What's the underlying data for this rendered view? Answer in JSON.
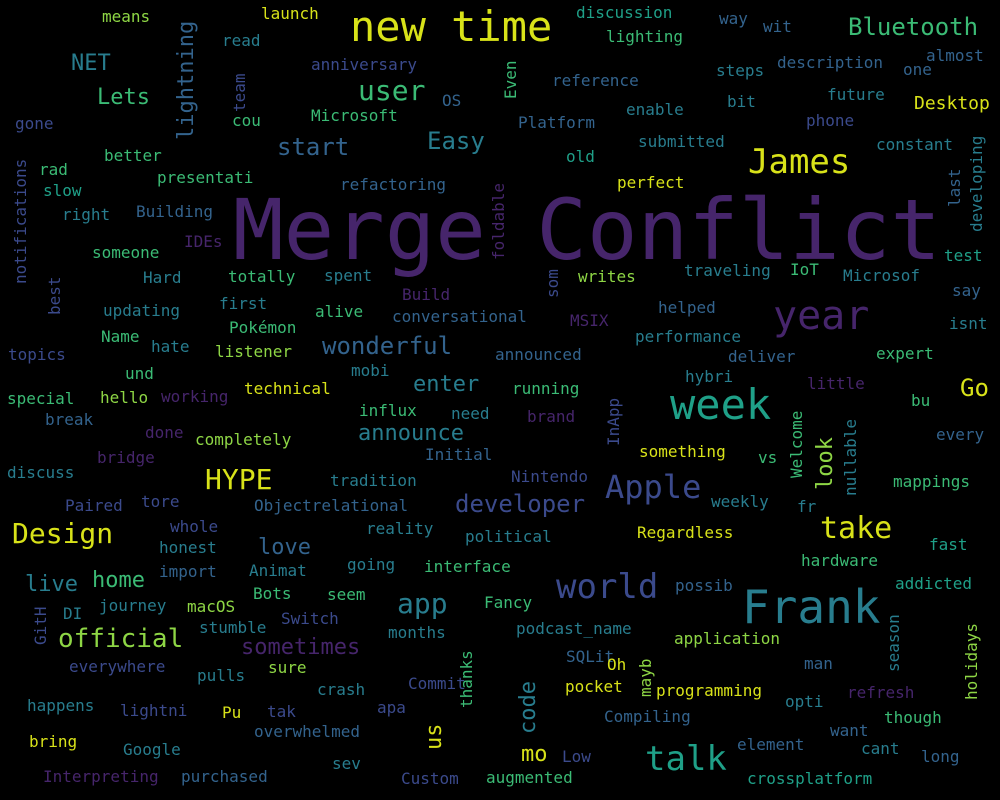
{
  "palette": {
    "background": "#000000",
    "purple": "#46256b",
    "indigo": "#3b4a8c",
    "blue": "#33638d",
    "teal": "#287d8e",
    "green_teal": "#1fa088",
    "green": "#3bbb75",
    "lime": "#8ed645",
    "yellow": "#d8e219"
  },
  "words": [
    {
      "text": "Merge Conflict",
      "size": 84,
      "color": "#46256b"
    },
    {
      "text": "new time",
      "size": 42,
      "color": "#d8e219"
    },
    {
      "text": "Frank",
      "size": 46,
      "color": "#287d8e"
    },
    {
      "text": "week",
      "size": 42,
      "color": "#1fa088"
    },
    {
      "text": "James",
      "size": 34,
      "color": "#d8e219"
    },
    {
      "text": "year",
      "size": 40,
      "color": "#46256b"
    },
    {
      "text": "talk",
      "size": 34,
      "color": "#1fa088"
    },
    {
      "text": "world",
      "size": 34,
      "color": "#3b4a8c"
    },
    {
      "text": "Apple",
      "size": 32,
      "color": "#3b4a8c"
    },
    {
      "text": "take",
      "size": 30,
      "color": "#d8e219"
    },
    {
      "text": "Design",
      "size": 28,
      "color": "#d8e219"
    },
    {
      "text": "HYPE",
      "size": 28,
      "color": "#d8e219"
    },
    {
      "text": "Bluetooth",
      "size": 24,
      "color": "#3bbb75"
    },
    {
      "text": "user",
      "size": 28,
      "color": "#3bbb75"
    },
    {
      "text": "app",
      "size": 28,
      "color": "#287d8e"
    },
    {
      "text": "official",
      "size": 26,
      "color": "#8ed645"
    },
    {
      "text": "developer",
      "size": 24,
      "color": "#3b4a8c"
    },
    {
      "text": "wonderful",
      "size": 24,
      "color": "#33638d"
    },
    {
      "text": "announce",
      "size": 22,
      "color": "#287d8e"
    },
    {
      "text": "start",
      "size": 24,
      "color": "#33638d"
    },
    {
      "text": "Easy",
      "size": 24,
      "color": "#287d8e"
    },
    {
      "text": "Lets",
      "size": 22,
      "color": "#3bbb75"
    },
    {
      "text": "NET",
      "size": 22,
      "color": "#287d8e"
    },
    {
      "text": "sometimes",
      "size": 22,
      "color": "#46256b"
    },
    {
      "text": "live",
      "size": 22,
      "color": "#287d8e"
    },
    {
      "text": "home",
      "size": 22,
      "color": "#3bbb75"
    },
    {
      "text": "love",
      "size": 22,
      "color": "#33638d"
    },
    {
      "text": "enter",
      "size": 22,
      "color": "#287d8e"
    },
    {
      "text": "Go",
      "size": 24,
      "color": "#d8e219"
    },
    {
      "text": "us",
      "size": 22,
      "color": "#d8e219"
    },
    {
      "text": "code",
      "size": 22,
      "color": "#287d8e"
    },
    {
      "text": "look",
      "size": 22,
      "color": "#8ed645"
    },
    {
      "text": "mo",
      "size": 22,
      "color": "#d8e219"
    },
    {
      "text": "lightning",
      "size": 22,
      "color": "#33638d"
    },
    {
      "text": "Desktop",
      "size": 18,
      "color": "#d8e219"
    },
    {
      "text": "means",
      "size": 16,
      "color": "#8ed645"
    },
    {
      "text": "launch",
      "size": 16,
      "color": "#d8e219"
    },
    {
      "text": "discussion",
      "size": 16,
      "color": "#1fa088"
    },
    {
      "text": "lighting",
      "size": 16,
      "color": "#3bbb75"
    },
    {
      "text": "read",
      "size": 16,
      "color": "#287d8e"
    },
    {
      "text": "way",
      "size": 16,
      "color": "#33638d"
    },
    {
      "text": "wit",
      "size": 16,
      "color": "#33638d"
    },
    {
      "text": "almost",
      "size": 16,
      "color": "#33638d"
    },
    {
      "text": "anniversary",
      "size": 16,
      "color": "#3b4a8c"
    },
    {
      "text": "reference",
      "size": 16,
      "color": "#33638d"
    },
    {
      "text": "steps",
      "size": 16,
      "color": "#287d8e"
    },
    {
      "text": "description",
      "size": 16,
      "color": "#33638d"
    },
    {
      "text": "one",
      "size": 16,
      "color": "#33638d"
    },
    {
      "text": "OS",
      "size": 16,
      "color": "#33638d"
    },
    {
      "text": "Even",
      "size": 16,
      "color": "#3bbb75"
    },
    {
      "text": "enable",
      "size": 16,
      "color": "#287d8e"
    },
    {
      "text": "bit",
      "size": 16,
      "color": "#287d8e"
    },
    {
      "text": "future",
      "size": 16,
      "color": "#287d8e"
    },
    {
      "text": "team",
      "size": 16,
      "color": "#3b4a8c"
    },
    {
      "text": "cou",
      "size": 16,
      "color": "#3bbb75"
    },
    {
      "text": "Microsoft",
      "size": 16,
      "color": "#3bbb75"
    },
    {
      "text": "Platform",
      "size": 16,
      "color": "#33638d"
    },
    {
      "text": "phone",
      "size": 16,
      "color": "#3b4a8c"
    },
    {
      "text": "gone",
      "size": 16,
      "color": "#3b4a8c"
    },
    {
      "text": "better",
      "size": 16,
      "color": "#3bbb75"
    },
    {
      "text": "old",
      "size": 16,
      "color": "#1fa088"
    },
    {
      "text": "submitted",
      "size": 16,
      "color": "#287d8e"
    },
    {
      "text": "constant",
      "size": 16,
      "color": "#287d8e"
    },
    {
      "text": "developing",
      "size": 16,
      "color": "#287d8e"
    },
    {
      "text": "rad",
      "size": 16,
      "color": "#3bbb75"
    },
    {
      "text": "presentati",
      "size": 16,
      "color": "#3bbb75"
    },
    {
      "text": "refactoring",
      "size": 16,
      "color": "#33638d"
    },
    {
      "text": "perfect",
      "size": 16,
      "color": "#d8e219"
    },
    {
      "text": "last",
      "size": 16,
      "color": "#33638d"
    },
    {
      "text": "slow",
      "size": 16,
      "color": "#1fa088"
    },
    {
      "text": "notifications",
      "size": 16,
      "color": "#3b4a8c"
    },
    {
      "text": "right",
      "size": 16,
      "color": "#287d8e"
    },
    {
      "text": "Building",
      "size": 16,
      "color": "#33638d"
    },
    {
      "text": "foldable",
      "size": 16,
      "color": "#46256b"
    },
    {
      "text": "someone",
      "size": 16,
      "color": "#3bbb75"
    },
    {
      "text": "IDEs",
      "size": 16,
      "color": "#46256b"
    },
    {
      "text": "test",
      "size": 16,
      "color": "#1fa088"
    },
    {
      "text": "best",
      "size": 16,
      "color": "#3b4a8c"
    },
    {
      "text": "Hard",
      "size": 16,
      "color": "#287d8e"
    },
    {
      "text": "totally",
      "size": 16,
      "color": "#3bbb75"
    },
    {
      "text": "spent",
      "size": 16,
      "color": "#287d8e"
    },
    {
      "text": "som",
      "size": 16,
      "color": "#3b4a8c"
    },
    {
      "text": "writes",
      "size": 16,
      "color": "#8ed645"
    },
    {
      "text": "traveling",
      "size": 16,
      "color": "#287d8e"
    },
    {
      "text": "IoT",
      "size": 16,
      "color": "#3bbb75"
    },
    {
      "text": "Microsof",
      "size": 16,
      "color": "#287d8e"
    },
    {
      "text": "say",
      "size": 16,
      "color": "#33638d"
    },
    {
      "text": "updating",
      "size": 16,
      "color": "#287d8e"
    },
    {
      "text": "first",
      "size": 16,
      "color": "#287d8e"
    },
    {
      "text": "Build",
      "size": 16,
      "color": "#46256b"
    },
    {
      "text": "alive",
      "size": 16,
      "color": "#3bbb75"
    },
    {
      "text": "conversational",
      "size": 16,
      "color": "#33638d"
    },
    {
      "text": "helped",
      "size": 16,
      "color": "#33638d"
    },
    {
      "text": "isnt",
      "size": 16,
      "color": "#287d8e"
    },
    {
      "text": "Name",
      "size": 16,
      "color": "#3bbb75"
    },
    {
      "text": "Pokémon",
      "size": 16,
      "color": "#3bbb75"
    },
    {
      "text": "MSIX",
      "size": 16,
      "color": "#46256b"
    },
    {
      "text": "performance",
      "size": 16,
      "color": "#287d8e"
    },
    {
      "text": "topics",
      "size": 16,
      "color": "#3b4a8c"
    },
    {
      "text": "hate",
      "size": 16,
      "color": "#287d8e"
    },
    {
      "text": "listener",
      "size": 16,
      "color": "#8ed645"
    },
    {
      "text": "announced",
      "size": 16,
      "color": "#33638d"
    },
    {
      "text": "deliver",
      "size": 16,
      "color": "#33638d"
    },
    {
      "text": "expert",
      "size": 16,
      "color": "#3bbb75"
    },
    {
      "text": "und",
      "size": 16,
      "color": "#3bbb75"
    },
    {
      "text": "mobi",
      "size": 16,
      "color": "#287d8e"
    },
    {
      "text": "hybri",
      "size": 16,
      "color": "#287d8e"
    },
    {
      "text": "technical",
      "size": 16,
      "color": "#d8e219"
    },
    {
      "text": "running",
      "size": 16,
      "color": "#3bbb75"
    },
    {
      "text": "little",
      "size": 16,
      "color": "#46256b"
    },
    {
      "text": "special",
      "size": 16,
      "color": "#3bbb75"
    },
    {
      "text": "hello",
      "size": 16,
      "color": "#8ed645"
    },
    {
      "text": "working",
      "size": 16,
      "color": "#46256b"
    },
    {
      "text": "brand",
      "size": 16,
      "color": "#46256b"
    },
    {
      "text": "bu",
      "size": 16,
      "color": "#3bbb75"
    },
    {
      "text": "break",
      "size": 16,
      "color": "#33638d"
    },
    {
      "text": "influx",
      "size": 16,
      "color": "#3bbb75"
    },
    {
      "text": "need",
      "size": 16,
      "color": "#287d8e"
    },
    {
      "text": "InApp",
      "size": 16,
      "color": "#3b4a8c"
    },
    {
      "text": "Welcome",
      "size": 16,
      "color": "#3bbb75"
    },
    {
      "text": "nullable",
      "size": 16,
      "color": "#287d8e"
    },
    {
      "text": "every",
      "size": 16,
      "color": "#33638d"
    },
    {
      "text": "done",
      "size": 16,
      "color": "#46256b"
    },
    {
      "text": "completely",
      "size": 16,
      "color": "#8ed645"
    },
    {
      "text": "bridge",
      "size": 16,
      "color": "#46256b"
    },
    {
      "text": "something",
      "size": 16,
      "color": "#d8e219"
    },
    {
      "text": "vs",
      "size": 16,
      "color": "#3bbb75"
    },
    {
      "text": "discuss",
      "size": 16,
      "color": "#287d8e"
    },
    {
      "text": "tradition",
      "size": 16,
      "color": "#287d8e"
    },
    {
      "text": "Initial",
      "size": 16,
      "color": "#33638d"
    },
    {
      "text": "Nintendo",
      "size": 16,
      "color": "#3b4a8c"
    },
    {
      "text": "mappings",
      "size": 16,
      "color": "#3bbb75"
    },
    {
      "text": "Paired",
      "size": 16,
      "color": "#3b4a8c"
    },
    {
      "text": "tore",
      "size": 16,
      "color": "#3b4a8c"
    },
    {
      "text": "Objectrelational",
      "size": 16,
      "color": "#33638d"
    },
    {
      "text": "weekly",
      "size": 16,
      "color": "#287d8e"
    },
    {
      "text": "fr",
      "size": 16,
      "color": "#287d8e"
    },
    {
      "text": "whole",
      "size": 16,
      "color": "#3b4a8c"
    },
    {
      "text": "reality",
      "size": 16,
      "color": "#287d8e"
    },
    {
      "text": "political",
      "size": 16,
      "color": "#287d8e"
    },
    {
      "text": "Regardless",
      "size": 16,
      "color": "#d8e219"
    },
    {
      "text": "honest",
      "size": 16,
      "color": "#287d8e"
    },
    {
      "text": "fast",
      "size": 16,
      "color": "#1fa088"
    },
    {
      "text": "import",
      "size": 16,
      "color": "#33638d"
    },
    {
      "text": "Animat",
      "size": 16,
      "color": "#287d8e"
    },
    {
      "text": "going",
      "size": 16,
      "color": "#287d8e"
    },
    {
      "text": "interface",
      "size": 16,
      "color": "#3bbb75"
    },
    {
      "text": "hardware",
      "size": 16,
      "color": "#3bbb75"
    },
    {
      "text": "journey",
      "size": 16,
      "color": "#287d8e"
    },
    {
      "text": "Bots",
      "size": 16,
      "color": "#3bbb75"
    },
    {
      "text": "seem",
      "size": 16,
      "color": "#3bbb75"
    },
    {
      "text": "possib",
      "size": 16,
      "color": "#33638d"
    },
    {
      "text": "addicted",
      "size": 16,
      "color": "#1fa088"
    },
    {
      "text": "DI",
      "size": 16,
      "color": "#287d8e"
    },
    {
      "text": "macOS",
      "size": 16,
      "color": "#8ed645"
    },
    {
      "text": "Fancy",
      "size": 16,
      "color": "#3bbb75"
    },
    {
      "text": "GitH",
      "size": 16,
      "color": "#3b4a8c"
    },
    {
      "text": "stumble",
      "size": 16,
      "color": "#287d8e"
    },
    {
      "text": "Switch",
      "size": 16,
      "color": "#3b4a8c"
    },
    {
      "text": "months",
      "size": 16,
      "color": "#287d8e"
    },
    {
      "text": "podcast_name",
      "size": 16,
      "color": "#287d8e"
    },
    {
      "text": "season",
      "size": 16,
      "color": "#287d8e"
    },
    {
      "text": "holidays",
      "size": 16,
      "color": "#8ed645"
    },
    {
      "text": "application",
      "size": 16,
      "color": "#8ed645"
    },
    {
      "text": "everywhere",
      "size": 16,
      "color": "#3b4a8c"
    },
    {
      "text": "sure",
      "size": 16,
      "color": "#8ed645"
    },
    {
      "text": "SQLit",
      "size": 16,
      "color": "#33638d"
    },
    {
      "text": "Oh",
      "size": 16,
      "color": "#d8e219"
    },
    {
      "text": "man",
      "size": 16,
      "color": "#33638d"
    },
    {
      "text": "pulls",
      "size": 16,
      "color": "#287d8e"
    },
    {
      "text": "crash",
      "size": 16,
      "color": "#287d8e"
    },
    {
      "text": "Commit",
      "size": 16,
      "color": "#3b4a8c"
    },
    {
      "text": "thanks",
      "size": 16,
      "color": "#3bbb75"
    },
    {
      "text": "pocket",
      "size": 16,
      "color": "#d8e219"
    },
    {
      "text": "mayb",
      "size": 16,
      "color": "#8ed645"
    },
    {
      "text": "programming",
      "size": 16,
      "color": "#d8e219"
    },
    {
      "text": "refresh",
      "size": 16,
      "color": "#46256b"
    },
    {
      "text": "happens",
      "size": 16,
      "color": "#287d8e"
    },
    {
      "text": "lightni",
      "size": 16,
      "color": "#3b4a8c"
    },
    {
      "text": "Pu",
      "size": 16,
      "color": "#d8e219"
    },
    {
      "text": "tak",
      "size": 16,
      "color": "#3b4a8c"
    },
    {
      "text": "apa",
      "size": 16,
      "color": "#3b4a8c"
    },
    {
      "text": "opti",
      "size": 16,
      "color": "#287d8e"
    },
    {
      "text": "though",
      "size": 16,
      "color": "#3bbb75"
    },
    {
      "text": "overwhelmed",
      "size": 16,
      "color": "#33638d"
    },
    {
      "text": "Compiling",
      "size": 16,
      "color": "#33638d"
    },
    {
      "text": "want",
      "size": 16,
      "color": "#33638d"
    },
    {
      "text": "bring",
      "size": 16,
      "color": "#d8e219"
    },
    {
      "text": "Google",
      "size": 16,
      "color": "#287d8e"
    },
    {
      "text": "element",
      "size": 16,
      "color": "#33638d"
    },
    {
      "text": "cant",
      "size": 16,
      "color": "#287d8e"
    },
    {
      "text": "sev",
      "size": 16,
      "color": "#287d8e"
    },
    {
      "text": "Low",
      "size": 16,
      "color": "#3b4a8c"
    },
    {
      "text": "long",
      "size": 16,
      "color": "#33638d"
    },
    {
      "text": "Interpreting",
      "size": 16,
      "color": "#46256b"
    },
    {
      "text": "purchased",
      "size": 16,
      "color": "#33638d"
    },
    {
      "text": "Custom",
      "size": 16,
      "color": "#3b4a8c"
    },
    {
      "text": "augmented",
      "size": 16,
      "color": "#3bbb75"
    },
    {
      "text": "crossplatform",
      "size": 16,
      "color": "#1fa088"
    }
  ]
}
